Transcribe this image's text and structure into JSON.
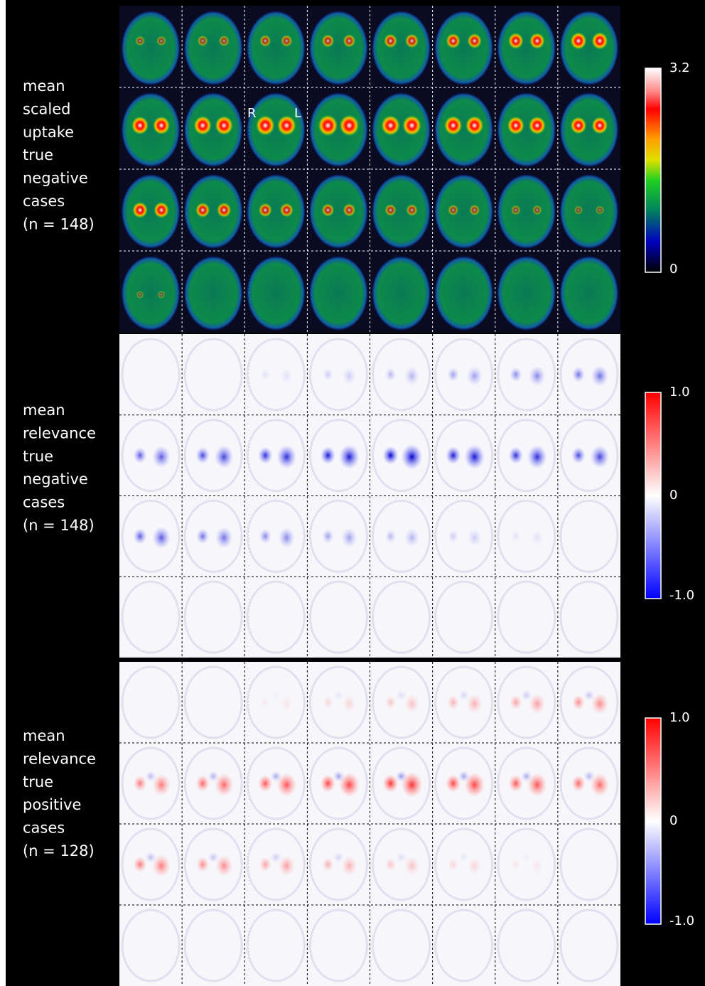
{
  "panels": [
    {
      "label_lines": [
        "mean",
        "scaled",
        "uptake",
        "true",
        "negative",
        "cases",
        "(n = 148)"
      ],
      "colorbar": {
        "max": "3.2",
        "min": "0"
      },
      "markers": [
        "R",
        "L"
      ]
    },
    {
      "label_lines": [
        "mean",
        "relevance",
        "true",
        "negative",
        "cases",
        "(n = 148)"
      ],
      "colorbar": {
        "max": "1.0",
        "mid": "0",
        "min": "-1.0"
      }
    },
    {
      "label_lines": [
        "mean",
        "relevance",
        "true",
        "positive",
        "cases",
        "(n = 128)"
      ],
      "colorbar": {
        "max": "1.0",
        "mid": "0",
        "min": "-1.0"
      }
    }
  ]
}
